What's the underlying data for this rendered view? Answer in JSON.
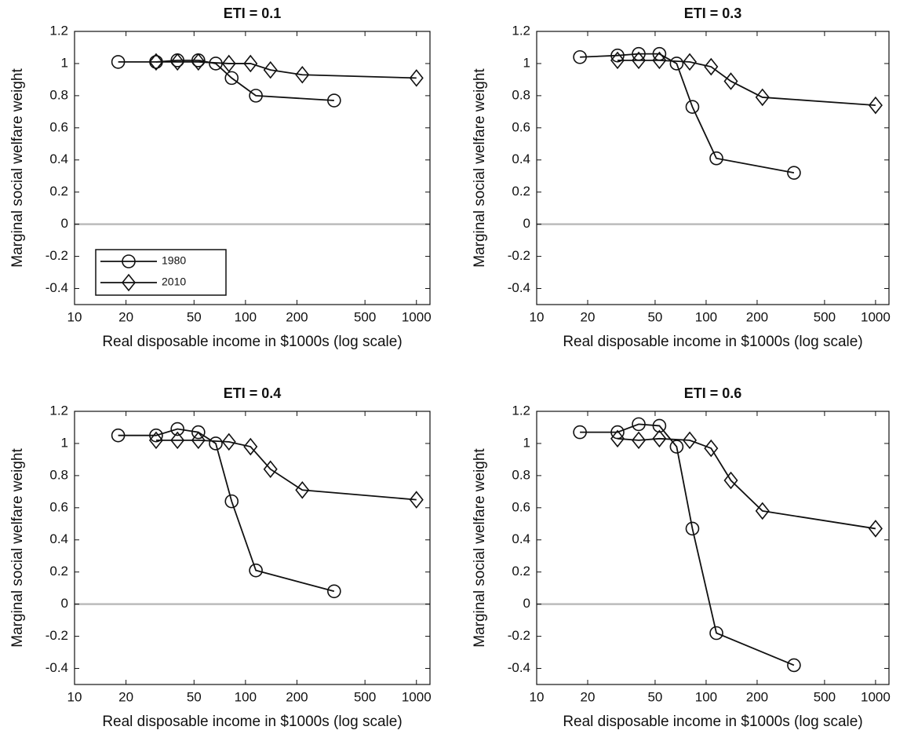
{
  "chart_data": [
    {
      "type": "line",
      "title": "ETI = 0.1",
      "x_label": "Real disposable income in $1000s (log scale)",
      "y_label": "Marginal social welfare weight",
      "x_scale": "log",
      "xlim": [
        10,
        1200
      ],
      "xticks": [
        10,
        20,
        50,
        100,
        200,
        500,
        1000
      ],
      "ylim": [
        -0.5,
        1.2
      ],
      "yticks": [
        -0.4,
        -0.2,
        0,
        0.2,
        0.4,
        0.6,
        0.8,
        1,
        1.2
      ],
      "zero_line": true,
      "legend": "lower left",
      "series": [
        {
          "name": "1980",
          "color": "#111111",
          "marker": "circle",
          "x": [
            18,
            30,
            40,
            53,
            67,
            83,
            115,
            330
          ],
          "values": [
            1.01,
            1.01,
            1.02,
            1.02,
            1.0,
            0.91,
            0.8,
            0.77
          ]
        },
        {
          "name": "2010",
          "color": "#111111",
          "marker": "diamond",
          "x": [
            30,
            40,
            53,
            80,
            107,
            140,
            215,
            1000
          ],
          "values": [
            1.01,
            1.01,
            1.01,
            1.0,
            1.0,
            0.96,
            0.93,
            0.91
          ]
        }
      ]
    },
    {
      "type": "line",
      "title": "ETI = 0.3",
      "x_label": "Real disposable income in $1000s (log scale)",
      "y_label": "Marginal social welfare weight",
      "x_scale": "log",
      "xlim": [
        10,
        1200
      ],
      "xticks": [
        10,
        20,
        50,
        100,
        200,
        500,
        1000
      ],
      "ylim": [
        -0.5,
        1.2
      ],
      "yticks": [
        -0.4,
        -0.2,
        0,
        0.2,
        0.4,
        0.6,
        0.8,
        1,
        1.2
      ],
      "zero_line": true,
      "series": [
        {
          "name": "1980",
          "color": "#111111",
          "marker": "circle",
          "x": [
            18,
            30,
            40,
            53,
            67,
            83,
            115,
            330
          ],
          "values": [
            1.04,
            1.05,
            1.06,
            1.06,
            1.0,
            0.73,
            0.41,
            0.32
          ]
        },
        {
          "name": "2010",
          "color": "#111111",
          "marker": "diamond",
          "x": [
            30,
            40,
            53,
            80,
            107,
            140,
            215,
            1000
          ],
          "values": [
            1.02,
            1.02,
            1.02,
            1.01,
            0.98,
            0.89,
            0.79,
            0.74
          ]
        }
      ]
    },
    {
      "type": "line",
      "title": "ETI = 0.4",
      "x_label": "Real disposable income in $1000s (log scale)",
      "y_label": "Marginal social welfare weight",
      "x_scale": "log",
      "xlim": [
        10,
        1200
      ],
      "xticks": [
        10,
        20,
        50,
        100,
        200,
        500,
        1000
      ],
      "ylim": [
        -0.5,
        1.2
      ],
      "yticks": [
        -0.4,
        -0.2,
        0,
        0.2,
        0.4,
        0.6,
        0.8,
        1,
        1.2
      ],
      "zero_line": true,
      "series": [
        {
          "name": "1980",
          "color": "#111111",
          "marker": "circle",
          "x": [
            18,
            30,
            40,
            53,
            67,
            83,
            115,
            330
          ],
          "values": [
            1.05,
            1.05,
            1.09,
            1.07,
            1.0,
            0.64,
            0.21,
            0.08
          ]
        },
        {
          "name": "2010",
          "color": "#111111",
          "marker": "diamond",
          "x": [
            30,
            40,
            53,
            80,
            107,
            140,
            215,
            1000
          ],
          "values": [
            1.02,
            1.02,
            1.02,
            1.01,
            0.98,
            0.84,
            0.71,
            0.65
          ]
        }
      ]
    },
    {
      "type": "line",
      "title": "ETI = 0.6",
      "x_label": "Real disposable income in $1000s (log scale)",
      "y_label": "Marginal social welfare weight",
      "x_scale": "log",
      "xlim": [
        10,
        1200
      ],
      "xticks": [
        10,
        20,
        50,
        100,
        200,
        500,
        1000
      ],
      "ylim": [
        -0.5,
        1.2
      ],
      "yticks": [
        -0.4,
        -0.2,
        0,
        0.2,
        0.4,
        0.6,
        0.8,
        1,
        1.2
      ],
      "zero_line": true,
      "series": [
        {
          "name": "1980",
          "color": "#111111",
          "marker": "circle",
          "x": [
            18,
            30,
            40,
            53,
            67,
            83,
            115,
            330
          ],
          "values": [
            1.07,
            1.07,
            1.12,
            1.11,
            0.98,
            0.47,
            -0.18,
            -0.38
          ]
        },
        {
          "name": "2010",
          "color": "#111111",
          "marker": "diamond",
          "x": [
            30,
            40,
            53,
            80,
            107,
            140,
            215,
            1000
          ],
          "values": [
            1.03,
            1.02,
            1.03,
            1.02,
            0.97,
            0.77,
            0.58,
            0.47
          ]
        }
      ]
    }
  ]
}
